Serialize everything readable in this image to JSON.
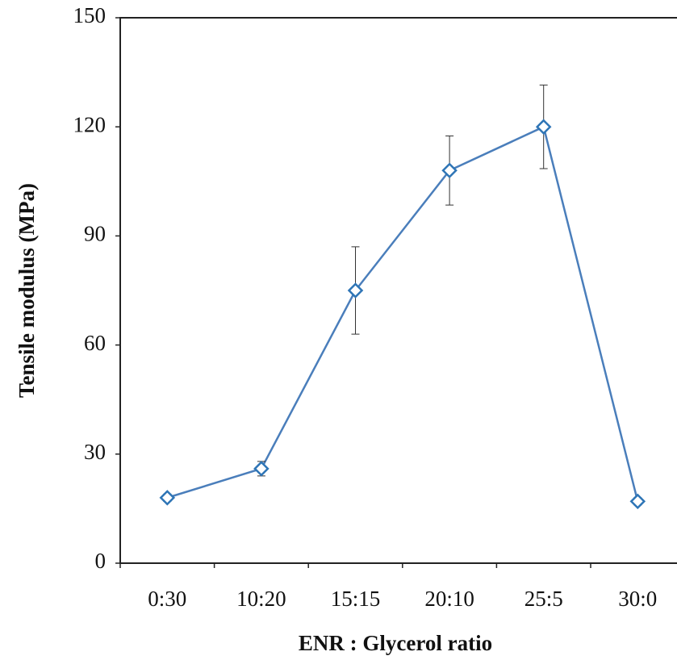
{
  "chart_data": {
    "type": "line",
    "x_label": "ENR : Glycerol ratio",
    "y_label": "Tensile modulus (MPa)",
    "categories": [
      "0:30",
      "10:20",
      "15:15",
      "20:10",
      "25:5",
      "30:0"
    ],
    "values": [
      18,
      26,
      75,
      108,
      120,
      17
    ],
    "errors": [
      1,
      2,
      12,
      9.5,
      11.5,
      1
    ],
    "color": "#4a7ebb",
    "marker_color": "#2e75b6",
    "ylim": [
      0,
      150
    ],
    "yticks": [
      0,
      30,
      60,
      90,
      120,
      150
    ]
  }
}
